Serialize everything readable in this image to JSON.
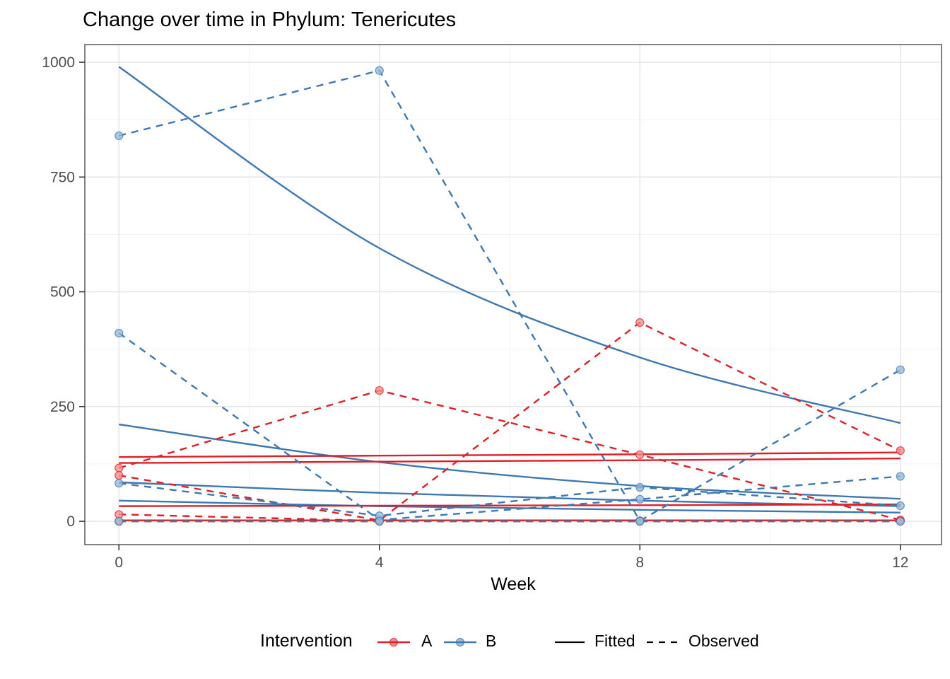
{
  "chart_data": {
    "type": "line",
    "title": "Change over time in Phylum: Tenericutes",
    "xlabel": "Week",
    "ylabel": "",
    "x_ticks": [
      0,
      4,
      8,
      12
    ],
    "y_ticks": [
      0,
      250,
      500,
      750,
      1000
    ],
    "x_minor": [
      2,
      6,
      10
    ],
    "y_minor": [
      125,
      375,
      625,
      875
    ],
    "x_range": [
      -0.524,
      12.632
    ],
    "y_range": [
      -50.8,
      1038.6
    ],
    "grid": true,
    "weeks": [
      0,
      4,
      8,
      12
    ],
    "series": [
      {
        "name": "A-subject1-fitted",
        "intervention": "A",
        "linetype": "Fitted",
        "values": [
          140,
          143,
          146,
          150
        ]
      },
      {
        "name": "A-subject2-fitted",
        "intervention": "A",
        "linetype": "Fitted",
        "values": [
          127,
          130,
          133,
          137
        ]
      },
      {
        "name": "A-subject3-fitted",
        "intervention": "A",
        "linetype": "Fitted",
        "values": [
          33,
          34,
          35,
          37
        ]
      },
      {
        "name": "A-subject4-fitted",
        "intervention": "A",
        "linetype": "Fitted",
        "values": [
          2,
          2,
          2,
          2
        ]
      },
      {
        "name": "B-subject1-fitted",
        "intervention": "B",
        "linetype": "Fitted",
        "values": [
          990,
          595,
          357,
          214
        ]
      },
      {
        "name": "B-subject2-fitted",
        "intervention": "B",
        "linetype": "Fitted",
        "values": [
          211,
          129,
          77,
          49
        ]
      },
      {
        "name": "B-subject3-fitted",
        "intervention": "B",
        "linetype": "Fitted",
        "values": [
          85,
          62,
          45,
          33
        ]
      },
      {
        "name": "B-subject4-fitted",
        "intervention": "B",
        "linetype": "Fitted",
        "values": [
          45,
          33,
          25,
          19
        ]
      },
      {
        "name": "A-subject1-observed",
        "intervention": "A",
        "linetype": "Observed",
        "values": [
          116,
          285,
          145,
          3
        ]
      },
      {
        "name": "A-subject2-observed",
        "intervention": "A",
        "linetype": "Observed",
        "values": [
          100,
          2,
          433,
          154
        ]
      },
      {
        "name": "A-subject3-observed",
        "intervention": "A",
        "linetype": "Observed",
        "values": [
          15,
          1,
          1,
          1
        ]
      },
      {
        "name": "A-subject4-observed",
        "intervention": "A",
        "linetype": "Observed",
        "values": [
          0,
          0,
          0,
          0
        ]
      },
      {
        "name": "B-subject1-observed",
        "intervention": "B",
        "linetype": "Observed",
        "values": [
          840,
          982,
          1,
          330
        ]
      },
      {
        "name": "B-subject2-observed",
        "intervention": "B",
        "linetype": "Observed",
        "values": [
          410,
          3,
          48,
          98
        ]
      },
      {
        "name": "B-subject3-observed",
        "intervention": "B",
        "linetype": "Observed",
        "values": [
          83,
          12,
          74,
          34
        ]
      },
      {
        "name": "B-subject4-observed",
        "intervention": "B",
        "linetype": "Observed",
        "values": [
          0,
          0,
          0,
          0
        ]
      }
    ],
    "colors": {
      "A": "#DE2126",
      "B": "#3E78B2",
      "A_point_fill": "#F09090",
      "B_point_fill": "#97BBD9",
      "grid_major": "#E3E3E3",
      "grid_minor": "#F1F1F1",
      "panel_border": "#4D4D4D",
      "tick": "#343434",
      "tick_label": "#4D4D4D"
    },
    "legend": {
      "title": "Intervention",
      "items": [
        {
          "label": "A",
          "color_key": "A"
        },
        {
          "label": "B",
          "color_key": "B"
        }
      ],
      "linetypes": [
        {
          "label": "Fitted"
        },
        {
          "label": "Observed"
        }
      ]
    }
  }
}
